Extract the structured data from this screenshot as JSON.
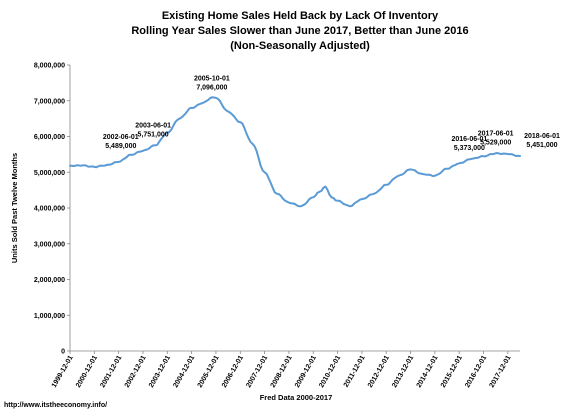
{
  "chart_data": {
    "type": "line",
    "title_lines": [
      "Existing Home Sales Held Back by Lack Of Inventory",
      "Rolling Year Sales Slower than June 2017, Better than  June  2016",
      "(Non-Seasonally Adjusted)"
    ],
    "xlabel": "Fred Data 2000-2017",
    "ylabel": "Units Sold Past Twelve Months",
    "ylim": [
      0,
      8000000
    ],
    "y_ticks": [
      0,
      1000000,
      2000000,
      3000000,
      4000000,
      5000000,
      6000000,
      7000000,
      8000000
    ],
    "y_tick_labels": [
      "0",
      "1,000,000",
      "2,000,000",
      "3,000,000",
      "4,000,000",
      "5,000,000",
      "6,000,000",
      "7,000,000",
      "8,000,000"
    ],
    "x_range": [
      "1999-12",
      "2018-06"
    ],
    "x_tick_labels": [
      "1999-12-01",
      "2000-12-01",
      "2001-12-01",
      "2002-12-01",
      "2003-12-01",
      "2004-12-01",
      "2005-12-01",
      "2006-12-01",
      "2007-12-01",
      "2008-12-01",
      "2009-12-01",
      "2010-12-01",
      "2011-12-01",
      "2012-12-01",
      "2013-12-01",
      "2014-12-01",
      "2015-12-01",
      "2016-12-01",
      "2017-12-01"
    ],
    "grid": false,
    "line_color": "#5b9bd5",
    "series": [
      {
        "keypoints": [
          [
            "1999-12",
            5180000
          ],
          [
            "2000-06",
            5190000
          ],
          [
            "2000-12",
            5150000
          ],
          [
            "2001-06",
            5200000
          ],
          [
            "2001-12",
            5290000
          ],
          [
            "2002-06",
            5489000
          ],
          [
            "2002-12",
            5600000
          ],
          [
            "2003-06",
            5751000
          ],
          [
            "2003-12",
            6100000
          ],
          [
            "2004-06",
            6500000
          ],
          [
            "2004-12",
            6800000
          ],
          [
            "2005-06",
            6950000
          ],
          [
            "2005-10",
            7096000
          ],
          [
            "2005-12",
            7080000
          ],
          [
            "2006-06",
            6700000
          ],
          [
            "2006-12",
            6400000
          ],
          [
            "2007-06",
            5800000
          ],
          [
            "2007-12",
            5000000
          ],
          [
            "2008-06",
            4400000
          ],
          [
            "2008-12",
            4150000
          ],
          [
            "2009-06",
            4050000
          ],
          [
            "2009-12",
            4300000
          ],
          [
            "2010-03",
            4450000
          ],
          [
            "2010-06",
            4600000
          ],
          [
            "2010-09",
            4300000
          ],
          [
            "2010-12",
            4200000
          ],
          [
            "2011-06",
            4050000
          ],
          [
            "2011-12",
            4250000
          ],
          [
            "2012-06",
            4400000
          ],
          [
            "2012-12",
            4650000
          ],
          [
            "2013-06",
            4900000
          ],
          [
            "2013-12",
            5080000
          ],
          [
            "2014-06",
            4950000
          ],
          [
            "2014-12",
            4900000
          ],
          [
            "2015-06",
            5100000
          ],
          [
            "2015-12",
            5250000
          ],
          [
            "2016-06",
            5373000
          ],
          [
            "2016-12",
            5450000
          ],
          [
            "2017-06",
            5529000
          ],
          [
            "2017-12",
            5510000
          ],
          [
            "2018-06",
            5451000
          ]
        ]
      }
    ],
    "annotations": [
      {
        "date": "2002-06",
        "label": "2002-06-01",
        "value_label": "5,489,000",
        "value": 5489000
      },
      {
        "date": "2003-06",
        "label": "2003-06-01",
        "value_label": "5,751,000",
        "value": 5751000
      },
      {
        "date": "2005-10",
        "label": "2005-10-01",
        "value_label": "7,096,000",
        "value": 7096000
      },
      {
        "date": "2016-06",
        "label": "2016-06-01",
        "value_label": "5,373,000",
        "value": 5373000
      },
      {
        "date": "2017-06",
        "label": "2017-06-01",
        "value_label": "5,529,000",
        "value": 5529000
      },
      {
        "date": "2018-06",
        "label": "2018-06-01",
        "value_label": "5,451,000",
        "value": 5451000
      }
    ]
  },
  "footer": {
    "url": "http://www.itstheeconomy.info/"
  }
}
